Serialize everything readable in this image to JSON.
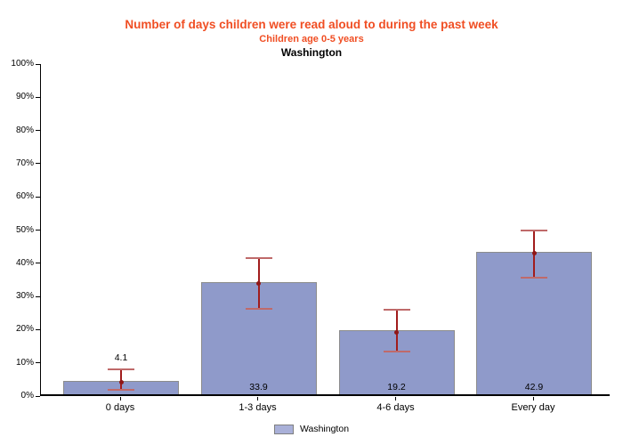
{
  "header": {
    "title": "Number of days children were read aloud to during the past week",
    "subtitle": "Children age 0-5 years",
    "region": "Washington"
  },
  "chart_data": {
    "type": "bar",
    "title": "Number of days children were read aloud to during the past week",
    "subtitle": "Children age 0-5 years",
    "region_title": "Washington",
    "categories": [
      "0 days",
      "1-3 days",
      "4-6 days",
      "Every day"
    ],
    "series": [
      {
        "name": "Washington",
        "values": [
          4.1,
          33.9,
          19.2,
          42.9
        ],
        "ci_low": [
          2.0,
          26.4,
          13.4,
          35.7
        ],
        "ci_high": [
          8.1,
          41.5,
          26.0,
          50.0
        ]
      }
    ],
    "value_labels": [
      "4.1",
      "33.9",
      "19.2",
      "42.9"
    ],
    "ylabel": "",
    "xlabel": "",
    "ylim": [
      0,
      100
    ],
    "ytick_step": 10,
    "ytick_labels": [
      "0%",
      "10%",
      "20%",
      "30%",
      "40%",
      "50%",
      "60%",
      "70%",
      "80%",
      "90%",
      "100%"
    ],
    "grid": false,
    "error_bars": true,
    "legend": {
      "position": "bottom",
      "entries": [
        "Washington"
      ]
    }
  },
  "colors": {
    "title": "#F04E23",
    "bar_fill": "#8F9ACA",
    "bar_border": "#8C8C8C",
    "legend_fill": "#A9B0D8",
    "error_line": "#A11C1C",
    "error_cap": "#BF6A6A",
    "error_dot": "#8F1616",
    "axis": "#000000",
    "text": "#000000"
  }
}
